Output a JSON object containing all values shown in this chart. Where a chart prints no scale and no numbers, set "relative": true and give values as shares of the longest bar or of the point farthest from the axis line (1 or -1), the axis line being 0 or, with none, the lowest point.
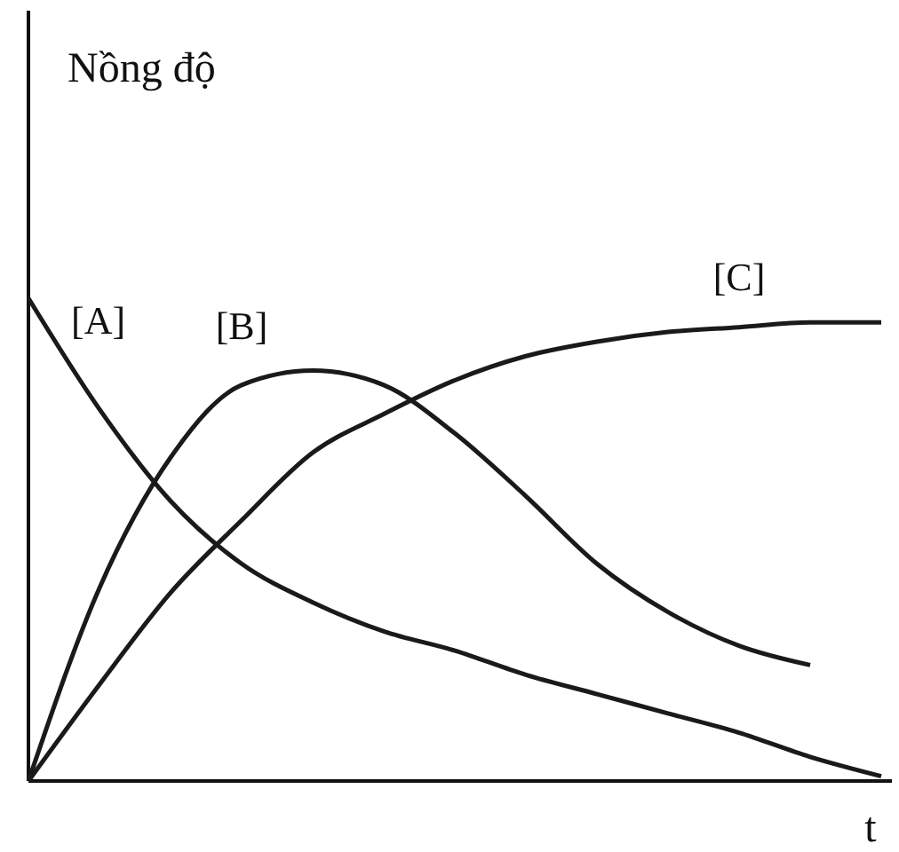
{
  "chart_data": {
    "type": "line",
    "relative": true,
    "ylabel": "Nồng độ",
    "xlabel": "t",
    "categories": [
      null,
      null,
      null,
      null,
      null,
      null,
      null,
      null,
      null,
      null,
      null,
      null,
      null
    ],
    "marker": "none",
    "grid": false,
    "series": [
      {
        "name": "[A]",
        "color": "#1a1a1a",
        "values": [
          1,
          0.77,
          0.58,
          0.45,
          0.37,
          0.31,
          0.27,
          0.22,
          0.18,
          0.14,
          0.1,
          0.05,
          0.01
        ]
      },
      {
        "name": "[B]",
        "color": "#1a1a1a",
        "values": [
          0,
          0.4,
          0.67,
          0.82,
          0.85,
          0.82,
          0.72,
          0.59,
          0.45,
          0.35,
          0.28,
          0.24,
          null
        ]
      },
      {
        "name": "[C]",
        "color": "#1a1a1a",
        "values": [
          0,
          0.2,
          0.39,
          0.54,
          0.68,
          0.76,
          0.83,
          0.88,
          0.91,
          0.93,
          0.94,
          0.95,
          0.95
        ]
      }
    ]
  }
}
